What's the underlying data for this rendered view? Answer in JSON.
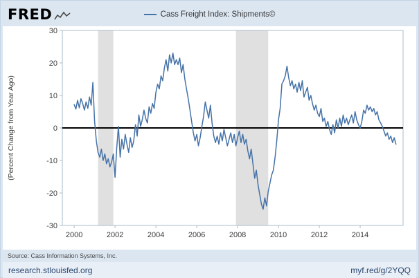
{
  "header": {
    "logo_text": "FRED",
    "legend": {
      "label": "Cass Freight Index: Shipments©"
    }
  },
  "footer": {
    "source": "Source: Cass Information Systems, Inc.",
    "site": "research.stlouisfed.org",
    "short_url": "myf.red/g/2YQQ"
  },
  "chart_data": {
    "type": "line",
    "title": "Cass Freight Index: Shipments©",
    "xlabel": "",
    "ylabel": "(Percent Change from Year Ago)",
    "ylim": [
      -30,
      30
    ],
    "yticks": [
      -30,
      -20,
      -10,
      0,
      10,
      20,
      30
    ],
    "xlim": [
      1999.42,
      2016.1
    ],
    "xticks": [
      2000,
      2002,
      2004,
      2006,
      2008,
      2010,
      2012,
      2014
    ],
    "zero_line": true,
    "grid": false,
    "legend_position": "top-center",
    "line_color": "#4572a7",
    "recession_color": "#e0e0e0",
    "frame_color": "#a9bccb",
    "recessions": [
      [
        2001.17,
        2001.92
      ],
      [
        2007.92,
        2009.5
      ]
    ],
    "series": [
      {
        "name": "Cass Freight Index: Shipments©",
        "units": "Percent Change from Year Ago",
        "frequency": "monthly",
        "start_year": 2000,
        "values": [
          7.2,
          5.8,
          8.5,
          6.2,
          9.0,
          7.5,
          5.5,
          8.0,
          6.0,
          9.5,
          7.0,
          14.0,
          2.0,
          -4.0,
          -7.5,
          -9.0,
          -6.5,
          -10.0,
          -8.0,
          -11.0,
          -9.5,
          -12.0,
          -10.5,
          -8.0,
          -15.2,
          -6.0,
          0.5,
          -9.0,
          -3.5,
          -6.5,
          -2.0,
          -5.0,
          -7.5,
          -3.0,
          -6.0,
          -4.0,
          1.0,
          -2.5,
          4.0,
          0.5,
          2.5,
          5.5,
          3.0,
          1.5,
          6.5,
          4.5,
          7.5,
          6.0,
          11.0,
          13.5,
          12.0,
          16.0,
          14.5,
          18.5,
          21.0,
          17.5,
          22.5,
          20.0,
          23.0,
          19.5,
          21.0,
          19.5,
          21.5,
          17.0,
          19.5,
          15.0,
          12.0,
          9.0,
          5.5,
          2.0,
          -1.5,
          -4.0,
          -2.0,
          -5.5,
          -3.0,
          0.5,
          3.5,
          8.0,
          5.5,
          3.0,
          7.0,
          1.5,
          -2.5,
          -4.5,
          -2.5,
          -5.0,
          -1.5,
          -4.0,
          -0.5,
          -3.0,
          -5.5,
          -3.5,
          -1.5,
          -4.5,
          -2.0,
          -5.5,
          -3.0,
          -1.0,
          -4.5,
          -2.0,
          -5.0,
          -3.5,
          -7.0,
          -9.5,
          -6.5,
          -11.0,
          -15.5,
          -13.0,
          -17.5,
          -20.5,
          -23.5,
          -25.0,
          -21.5,
          -24.0,
          -19.5,
          -17.0,
          -14.5,
          -13.0,
          -9.0,
          -4.0,
          2.5,
          6.0,
          13.5,
          14.5,
          16.0,
          19.0,
          15.5,
          13.0,
          14.5,
          12.0,
          13.5,
          11.0,
          14.0,
          11.5,
          14.5,
          9.5,
          11.0,
          12.5,
          8.5,
          10.0,
          7.5,
          5.5,
          7.0,
          4.5,
          3.5,
          6.0,
          2.0,
          3.0,
          0.5,
          2.0,
          -0.5,
          -2.0,
          1.0,
          -1.5,
          2.5,
          0.0,
          3.0,
          0.5,
          4.0,
          1.5,
          3.0,
          1.0,
          2.5,
          4.0,
          1.5,
          5.0,
          2.5,
          1.0,
          0.0,
          2.0,
          5.5,
          4.5,
          7.0,
          5.5,
          6.5,
          5.0,
          6.0,
          4.0,
          5.0,
          2.5,
          1.5,
          0.5,
          -1.0,
          -2.5,
          -1.5,
          -3.5,
          -2.5,
          -4.5,
          -3.0,
          -5.0
        ]
      }
    ]
  }
}
